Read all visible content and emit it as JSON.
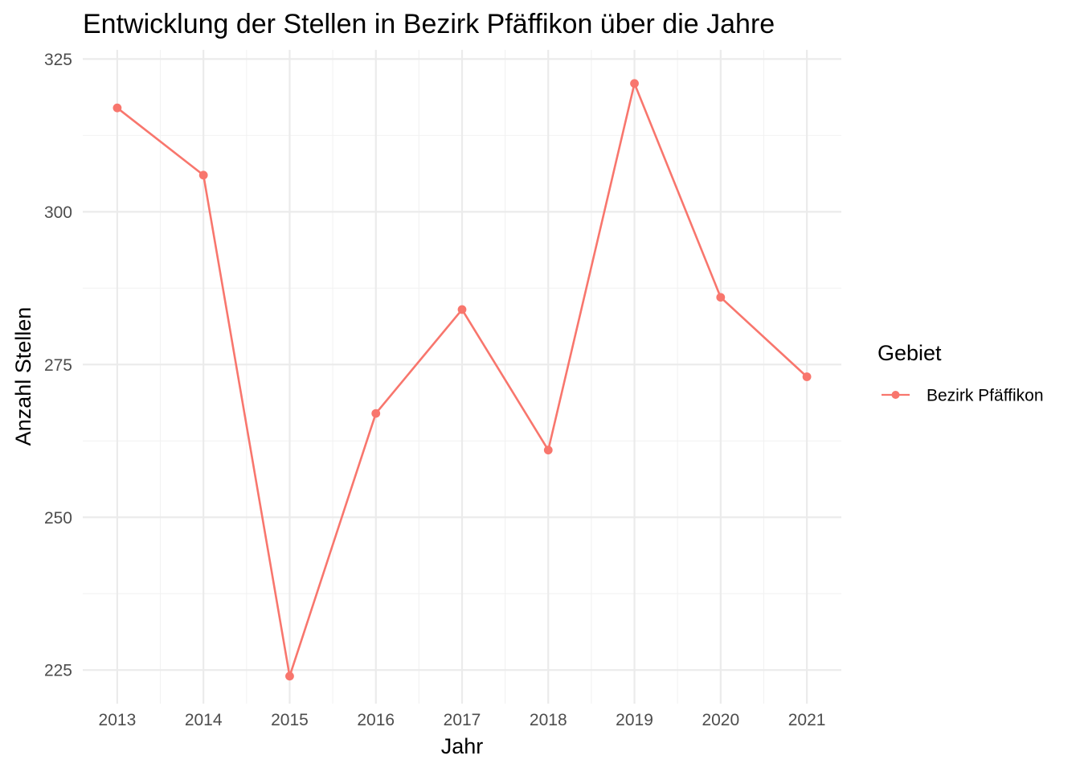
{
  "chart_data": {
    "type": "line",
    "title": "Entwicklung der Stellen in Bezirk Pfäffikon über die Jahre",
    "xlabel": "Jahr",
    "ylabel": "Anzahl Stellen",
    "x": [
      2013,
      2014,
      2015,
      2016,
      2017,
      2018,
      2019,
      2020,
      2021
    ],
    "series": [
      {
        "name": "Bezirk Pfäffikon",
        "color": "#F8766D",
        "values": [
          317,
          306,
          224,
          267,
          284,
          261,
          321,
          286,
          273
        ]
      }
    ],
    "xlim": [
      2012.6,
      2021.4
    ],
    "ylim": [
      219.5,
      326.5
    ],
    "y_ticks": [
      225,
      250,
      275,
      300,
      325
    ],
    "x_ticks": [
      2013,
      2014,
      2015,
      2016,
      2017,
      2018,
      2019,
      2020,
      2021
    ],
    "grid": true,
    "legend": {
      "title": "Gebiet",
      "position": "right"
    }
  }
}
